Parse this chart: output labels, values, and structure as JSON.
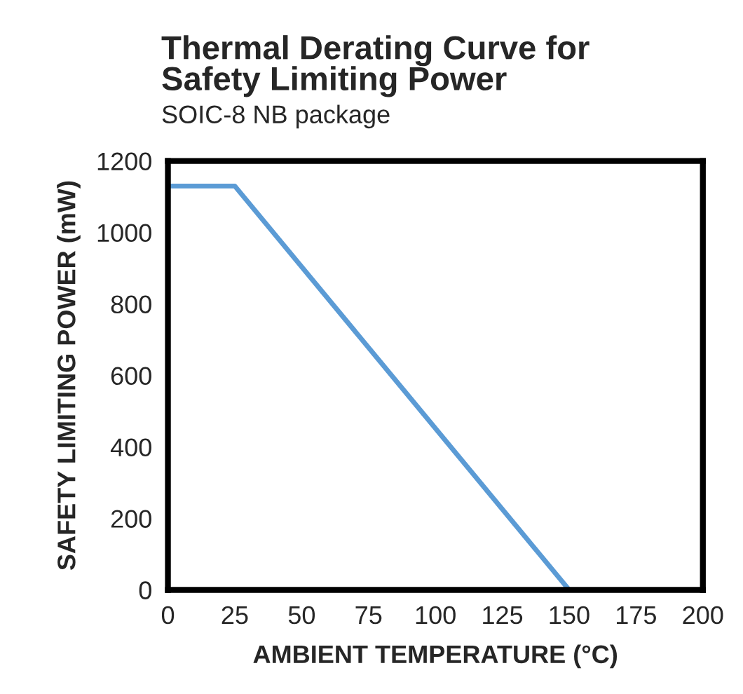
{
  "chart_data": {
    "type": "line",
    "title": "Thermal Derating Curve for\nSafety Limiting Power",
    "subtitle": "SOIC-8 NB package",
    "xlabel": "AMBIENT TEMPERATURE (°C)",
    "ylabel": "SAFETY LIMITING POWER (mW)",
    "x": [
      0,
      25,
      150
    ],
    "series": [
      {
        "color": "#5b9bd5",
        "values": [
          1130,
          1130,
          0
        ]
      }
    ],
    "xlim": [
      0,
      200
    ],
    "xticks": [
      0,
      25,
      50,
      75,
      100,
      125,
      150,
      175,
      200
    ],
    "ylim": [
      0,
      1200
    ],
    "yticks": [
      0,
      200,
      400,
      600,
      800,
      1000,
      1200
    ],
    "grid": false,
    "legend": false,
    "marker": "none",
    "line_style": "solid"
  }
}
